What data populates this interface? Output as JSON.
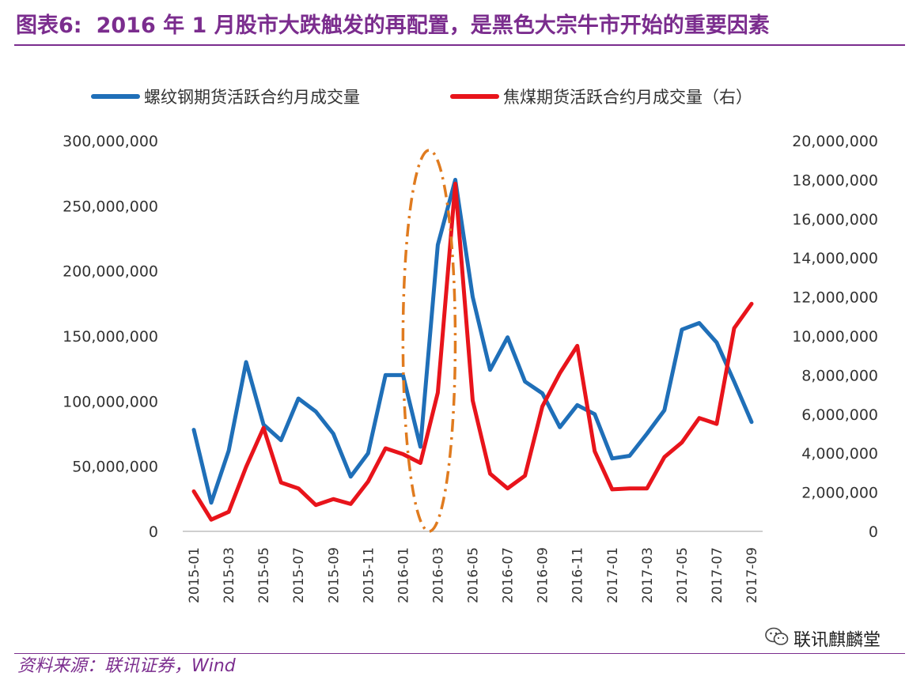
{
  "header": {
    "figure_label": "图表6:",
    "title": "2016 年 1 月股市大跌触发的再配置，是黑色大宗牛市开始的重要因素"
  },
  "footer": {
    "source": "资料来源：联讯证券，Wind",
    "watermark": "联讯麒麟堂",
    "watermark_icon": "wechat-icon"
  },
  "chart_data": {
    "type": "line",
    "title": "2016 年 1 月股市大跌触发的再配置，是黑色大宗牛市开始的重要因素",
    "xlabel": "",
    "ylabel": "",
    "legend_position": "top",
    "grid": false,
    "x": [
      "2015-01",
      "2015-02",
      "2015-03",
      "2015-04",
      "2015-05",
      "2015-06",
      "2015-07",
      "2015-08",
      "2015-09",
      "2015-10",
      "2015-11",
      "2015-12",
      "2016-01",
      "2016-02",
      "2016-03",
      "2016-04",
      "2016-05",
      "2016-06",
      "2016-07",
      "2016-08",
      "2016-09",
      "2016-10",
      "2016-11",
      "2016-12",
      "2017-01",
      "2017-02",
      "2017-03",
      "2017-04",
      "2017-05",
      "2017-06",
      "2017-07",
      "2017-08",
      "2017-09"
    ],
    "x_tick_labels": [
      "2015-01",
      "2015-03",
      "2015-05",
      "2015-07",
      "2015-09",
      "2015-11",
      "2016-01",
      "2016-03",
      "2016-05",
      "2016-07",
      "2016-09",
      "2016-11",
      "2017-01",
      "2017-03",
      "2017-05",
      "2017-07",
      "2017-09"
    ],
    "y_left": {
      "ylim": [
        0,
        300000000
      ],
      "tick_labels": [
        "0",
        "50,000,000",
        "100,000,000",
        "150,000,000",
        "200,000,000",
        "250,000,000",
        "300,000,000"
      ],
      "ticks": [
        0,
        50000000,
        100000000,
        150000000,
        200000000,
        250000000,
        300000000
      ]
    },
    "y_right": {
      "ylim": [
        0,
        20000000
      ],
      "tick_labels": [
        "0",
        "2,000,000",
        "4,000,000",
        "6,000,000",
        "8,000,000",
        "10,000,000",
        "12,000,000",
        "14,000,000",
        "16,000,000",
        "18,000,000",
        "20,000,000"
      ],
      "ticks": [
        0,
        2000000,
        4000000,
        6000000,
        8000000,
        10000000,
        12000000,
        14000000,
        16000000,
        18000000,
        20000000
      ]
    },
    "series": [
      {
        "name": "螺纹钢期货活跃合约月成交量",
        "axis": "left",
        "color": "#1f6fb8",
        "values": [
          78000000,
          22000000,
          62000000,
          130000000,
          82000000,
          70000000,
          102000000,
          92000000,
          75000000,
          42000000,
          60000000,
          120000000,
          120000000,
          65000000,
          220000000,
          270000000,
          180000000,
          124000000,
          149000000,
          115000000,
          106000000,
          80000000,
          97000000,
          90000000,
          56000000,
          58000000,
          75000000,
          93000000,
          155000000,
          160000000,
          145000000,
          115000000,
          84000000
        ]
      },
      {
        "name": "焦煤期货活跃合约月成交量（右）",
        "axis": "right",
        "color": "#e8141b",
        "values": [
          2050000,
          600000,
          1000000,
          3300000,
          5300000,
          2500000,
          2200000,
          1350000,
          1650000,
          1400000,
          2550000,
          4250000,
          3950000,
          3500000,
          7100000,
          17800000,
          6700000,
          2950000,
          2200000,
          2850000,
          6400000,
          8100000,
          9500000,
          4100000,
          2150000,
          2200000,
          2200000,
          3800000,
          4550000,
          5800000,
          5500000,
          10400000,
          11650000
        ]
      }
    ],
    "annotations": [
      {
        "type": "dash-dot-ellipse",
        "color": "#e07b1f",
        "x_from": "2016-01",
        "x_to": "2016-04",
        "description": "2016-02 to 2016-03 highlight"
      }
    ]
  }
}
